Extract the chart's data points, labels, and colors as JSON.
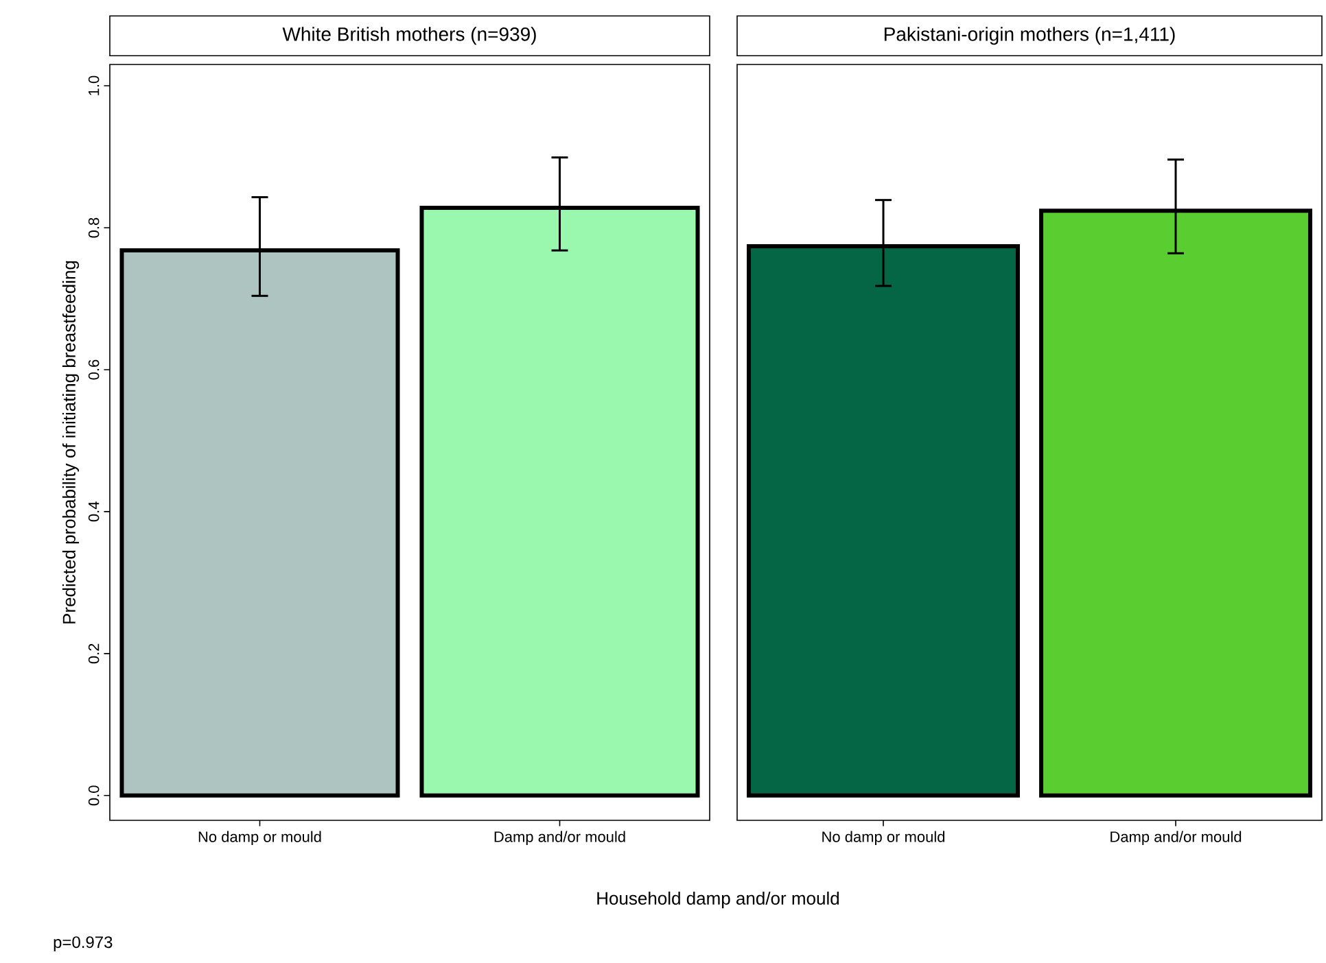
{
  "chart_data": [
    {
      "type": "bar",
      "title": "White British mothers (n=939)",
      "ylabel": "Predicted probability of initiating breastfeeding",
      "xlabel": "Household damp and/or mould",
      "annotations": [
        "p=0.973"
      ],
      "categories": [
        "No damp or mould",
        "Damp and/or mould"
      ],
      "values": [
        0.768,
        0.828
      ],
      "colors": [
        "#adc4c1",
        "#99f8ad"
      ],
      "errors": [
        [
          0.704,
          0.843
        ],
        [
          0.768,
          0.899
        ]
      ],
      "ylim": [
        -0.035,
        1.03
      ],
      "yticks": [
        {
          "value": 0,
          "label": "0.0"
        },
        {
          "value": 0.2,
          "label": "0.2"
        },
        {
          "value": 0.4,
          "label": "0.4"
        },
        {
          "value": 0.6,
          "label": "0.6"
        },
        {
          "value": 0.8,
          "label": "0.8"
        },
        {
          "value": 1,
          "label": "1.0"
        }
      ],
      "grid": false
    },
    {
      "type": "bar",
      "title": "Pakistani-origin mothers (n=1,411)",
      "categories": [
        "No damp or mould",
        "Damp and/or mould"
      ],
      "values": [
        0.774,
        0.824
      ],
      "colors": [
        "#046644",
        "#5acd30"
      ],
      "errors": [
        [
          0.718,
          0.839
        ],
        [
          0.764,
          0.896
        ]
      ],
      "ylim": [
        -0.035,
        1.03
      ],
      "tick_labels": "x",
      "grid": false
    }
  ]
}
